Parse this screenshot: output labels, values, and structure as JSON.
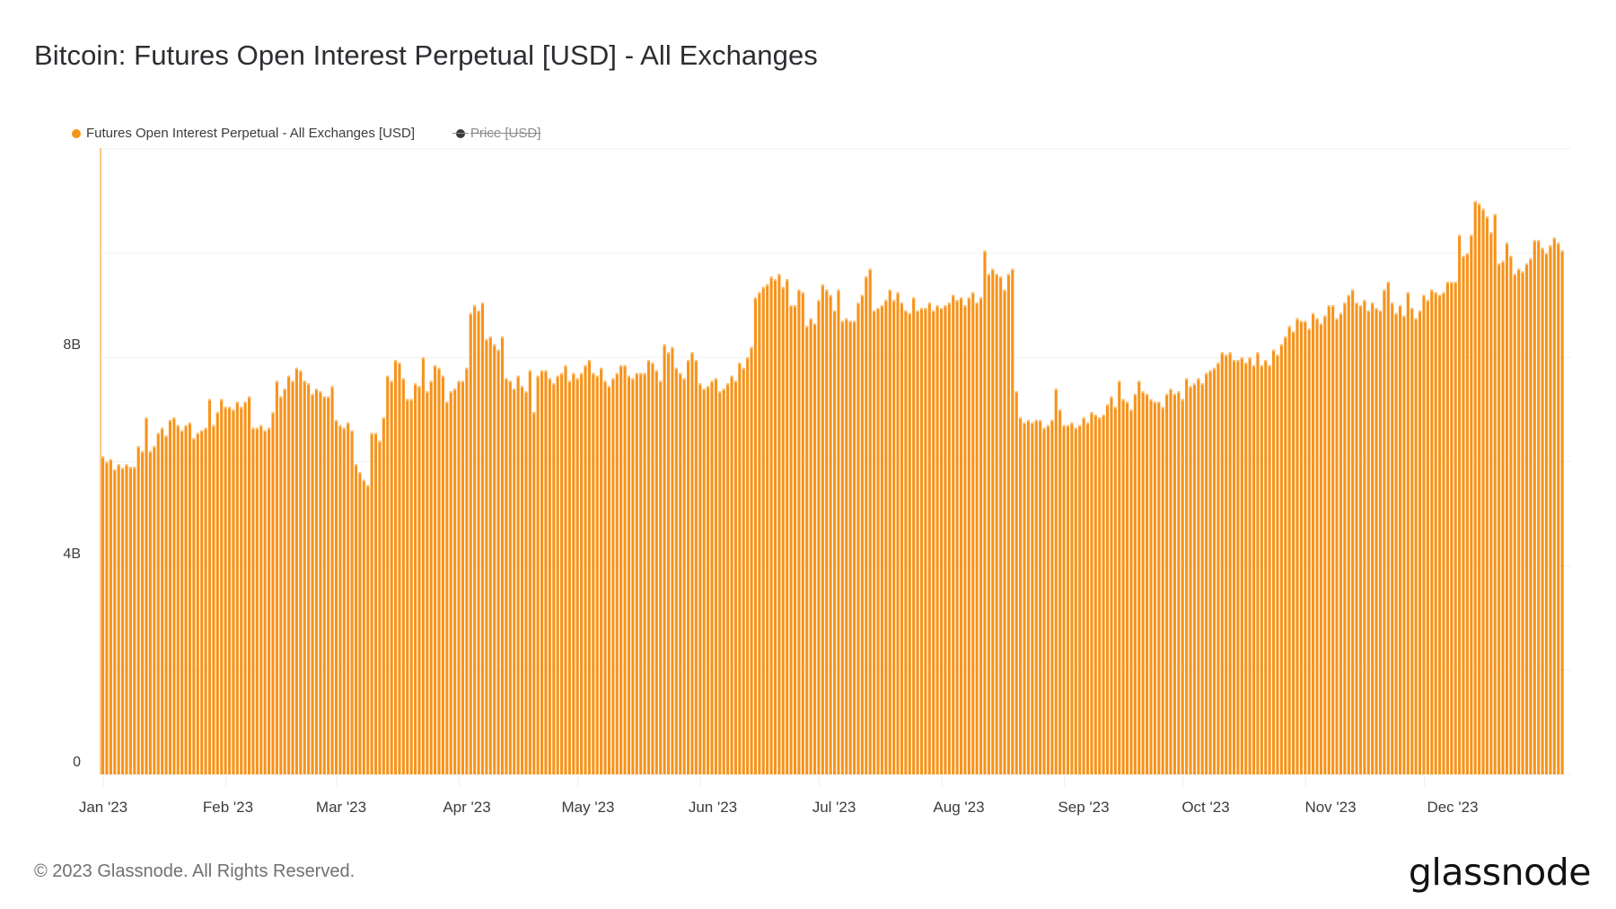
{
  "header": {
    "title": "Bitcoin: Futures Open Interest Perpetual [USD] - All Exchanges"
  },
  "legend": [
    {
      "label": "Futures Open Interest Perpetual - All Exchanges [USD]",
      "color": "#f7931a",
      "active": true
    },
    {
      "label": "Price [USD]",
      "color": "#3a3a3a",
      "active": false
    }
  ],
  "footer": {
    "copyright": "© 2023 Glassnode. All Rights Reserved.",
    "brand": "glassnode"
  },
  "colors": {
    "bar": "#f7931a",
    "bar_highlight": "#fbc077",
    "grid": "#f0f0f0",
    "axis": "#f9c98c"
  },
  "chart_data": {
    "type": "bar",
    "title": "Bitcoin: Futures Open Interest Perpetual [USD] - All Exchanges",
    "xlabel": "",
    "ylabel": "",
    "ylim": [
      0,
      12000000000
    ],
    "grid": true,
    "legend_position": "top-left",
    "y_ticks": [
      {
        "value": 0,
        "label": "0"
      },
      {
        "value": 4000000000,
        "label": "4B"
      },
      {
        "value": 8000000000,
        "label": "8B"
      }
    ],
    "y_gridlines_B": [
      0,
      2,
      4,
      6,
      8,
      10,
      12
    ],
    "x_ticks": [
      "Jan '23",
      "Feb '23",
      "Mar '23",
      "Apr '23",
      "May '23",
      "Jun '23",
      "Jul '23",
      "Aug '23",
      "Sep '23",
      "Oct '23",
      "Nov '23",
      "Dec '23"
    ],
    "x_start": "2023-01-01",
    "x_end": "2023-12-28",
    "unit": "USD billions",
    "series": [
      {
        "name": "Futures Open Interest Perpetual - All Exchanges [USD]",
        "color": "#f7931a",
        "values_B": [
          6.1,
          6.0,
          6.05,
          5.85,
          5.95,
          5.88,
          5.95,
          5.9,
          5.9,
          6.3,
          6.2,
          6.85,
          6.2,
          6.3,
          6.55,
          6.65,
          6.5,
          6.8,
          6.85,
          6.7,
          6.6,
          6.7,
          6.75,
          6.45,
          6.55,
          6.6,
          6.65,
          7.2,
          6.7,
          6.95,
          7.2,
          7.05,
          7.05,
          7.0,
          7.15,
          7.05,
          7.15,
          7.25,
          6.65,
          6.65,
          6.7,
          6.6,
          6.65,
          6.95,
          7.55,
          7.25,
          7.4,
          7.65,
          7.55,
          7.8,
          7.75,
          7.55,
          7.5,
          7.3,
          7.4,
          7.35,
          7.25,
          7.25,
          7.45,
          6.8,
          6.7,
          6.65,
          6.75,
          6.6,
          5.95,
          5.8,
          5.65,
          5.55,
          6.55,
          6.55,
          6.4,
          6.85,
          7.65,
          7.55,
          7.95,
          7.9,
          7.6,
          7.2,
          7.2,
          7.5,
          7.45,
          8.0,
          7.35,
          7.55,
          7.85,
          7.8,
          7.65,
          7.15,
          7.35,
          7.4,
          7.55,
          7.55,
          7.8,
          8.85,
          9.0,
          8.9,
          9.05,
          8.35,
          8.4,
          8.25,
          8.15,
          8.4,
          7.6,
          7.55,
          7.4,
          7.65,
          7.45,
          7.35,
          7.75,
          6.95,
          7.65,
          7.75,
          7.75,
          7.6,
          7.5,
          7.65,
          7.7,
          7.85,
          7.55,
          7.7,
          7.6,
          7.7,
          7.85,
          7.95,
          7.7,
          7.65,
          7.8,
          7.55,
          7.45,
          7.6,
          7.7,
          7.85,
          7.85,
          7.65,
          7.6,
          7.7,
          7.7,
          7.7,
          7.95,
          7.9,
          7.75,
          7.55,
          8.25,
          8.1,
          8.2,
          7.8,
          7.7,
          7.6,
          7.95,
          8.1,
          7.95,
          7.5,
          7.4,
          7.45,
          7.55,
          7.6,
          7.35,
          7.4,
          7.5,
          7.65,
          7.55,
          7.9,
          7.8,
          8.0,
          8.2,
          9.15,
          9.25,
          9.35,
          9.4,
          9.55,
          9.5,
          9.6,
          9.35,
          9.5,
          9.0,
          9.0,
          9.3,
          9.25,
          8.6,
          8.75,
          8.65,
          9.1,
          9.4,
          9.3,
          9.2,
          8.9,
          9.3,
          8.7,
          8.75,
          8.7,
          8.7,
          9.05,
          9.2,
          9.55,
          9.7,
          8.9,
          8.95,
          9.0,
          9.1,
          9.3,
          9.1,
          9.25,
          9.05,
          8.9,
          8.85,
          9.15,
          8.9,
          8.95,
          8.95,
          9.05,
          8.9,
          9.0,
          8.95,
          9.0,
          9.05,
          9.2,
          9.1,
          9.15,
          9.0,
          9.15,
          9.25,
          9.05,
          9.15,
          10.05,
          9.6,
          9.7,
          9.6,
          9.55,
          9.3,
          9.6,
          9.7,
          7.35,
          6.85,
          6.75,
          6.8,
          6.75,
          6.8,
          6.8,
          6.65,
          6.7,
          6.8,
          7.4,
          7.0,
          6.7,
          6.7,
          6.75,
          6.65,
          6.7,
          6.85,
          6.75,
          6.95,
          6.9,
          6.85,
          6.9,
          7.1,
          7.25,
          7.05,
          7.55,
          7.2,
          7.15,
          7.0,
          7.3,
          7.55,
          7.35,
          7.3,
          7.2,
          7.15,
          7.15,
          7.05,
          7.3,
          7.4,
          7.3,
          7.35,
          7.2,
          7.6,
          7.45,
          7.5,
          7.6,
          7.5,
          7.7,
          7.75,
          7.8,
          7.9,
          8.1,
          8.05,
          8.1,
          7.95,
          7.95,
          8.0,
          7.9,
          8.0,
          7.85,
          8.1,
          7.85,
          7.95,
          7.85,
          8.15,
          8.05,
          8.25,
          8.4,
          8.6,
          8.5,
          8.75,
          8.7,
          8.7,
          8.55,
          8.85,
          8.75,
          8.65,
          8.8,
          9.0,
          9.0,
          8.75,
          8.85,
          9.05,
          9.2,
          9.3,
          9.05,
          9.0,
          9.1,
          8.9,
          9.05,
          8.95,
          8.9,
          9.3,
          9.45,
          9.05,
          8.85,
          9.0,
          8.8,
          9.25,
          8.95,
          8.75,
          8.9,
          9.2,
          9.1,
          9.3,
          9.25,
          9.2,
          9.25,
          9.45,
          9.45,
          9.45,
          10.35,
          9.95,
          10.0,
          10.35,
          11.0,
          10.95,
          10.85,
          10.7,
          10.4,
          10.75,
          9.8,
          9.85,
          10.2,
          9.95,
          9.6,
          9.7,
          9.65,
          9.8,
          9.9,
          10.25,
          10.25,
          10.1,
          10.0,
          10.15,
          10.3,
          10.2,
          10.05
        ]
      }
    ]
  },
  "axis": {
    "y_labels": [
      "0",
      "4B",
      "8B"
    ],
    "x_labels": [
      "Jan '23",
      "Feb '23",
      "Mar '23",
      "Apr '23",
      "May '23",
      "Jun '23",
      "Jul '23",
      "Aug '23",
      "Sep '23",
      "Oct '23",
      "Nov '23",
      "Dec '23"
    ]
  }
}
